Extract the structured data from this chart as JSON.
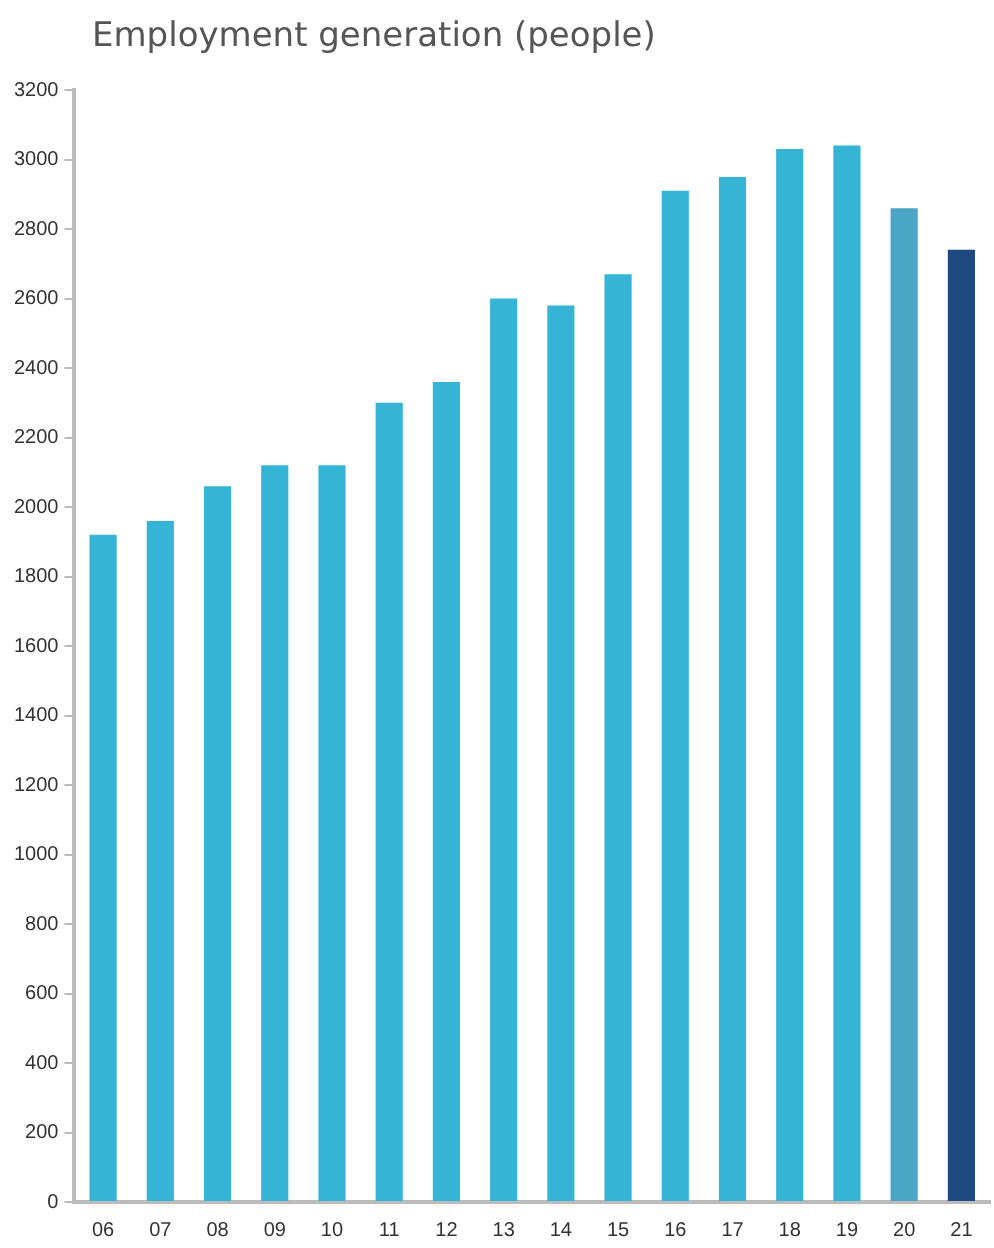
{
  "chart_data": {
    "type": "bar",
    "title": "Employment generation (people)",
    "categories": [
      "06",
      "07",
      "08",
      "09",
      "10",
      "11",
      "12",
      "13",
      "14",
      "15",
      "16",
      "17",
      "18",
      "19",
      "20",
      "21"
    ],
    "values": [
      1920,
      1960,
      2060,
      2120,
      2120,
      2300,
      2360,
      2600,
      2580,
      2670,
      2910,
      2950,
      3030,
      3040,
      2860,
      2740
    ],
    "colors": [
      "#36b4d6",
      "#36b4d6",
      "#36b4d6",
      "#36b4d6",
      "#36b4d6",
      "#36b4d6",
      "#36b4d6",
      "#36b4d6",
      "#36b4d6",
      "#36b4d6",
      "#36b4d6",
      "#36b4d6",
      "#36b4d6",
      "#36b4d6",
      "#4aa6c4",
      "#1f4a80"
    ],
    "ylim": [
      0,
      3200
    ],
    "yticks": [
      0,
      200,
      400,
      600,
      800,
      1000,
      1200,
      1400,
      1600,
      1800,
      2000,
      2200,
      2400,
      2600,
      2800,
      3000,
      3200
    ],
    "grid": false,
    "legend": false
  }
}
